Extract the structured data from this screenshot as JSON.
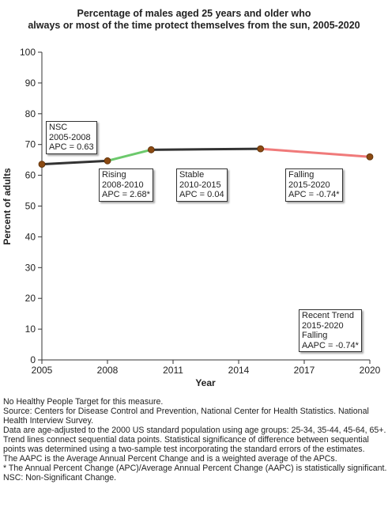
{
  "chart_data": {
    "type": "line",
    "title_lines": [
      "Percentage of males aged 25 years and older who",
      "always or most of the time protect themselves from the sun, 2005-2020"
    ],
    "xlabel": "Year",
    "ylabel": "Percent of adults",
    "xlim": [
      2005,
      2020
    ],
    "ylim": [
      0,
      100
    ],
    "x_ticks": [
      "2005",
      "2008",
      "2011",
      "2014",
      "2017",
      "2020"
    ],
    "y_ticks": [
      "0",
      "10",
      "20",
      "30",
      "40",
      "50",
      "60",
      "70",
      "80",
      "90",
      "100"
    ],
    "grid": false,
    "points": [
      {
        "x": 2005,
        "y": 63.6
      },
      {
        "x": 2008,
        "y": 64.7
      },
      {
        "x": 2010,
        "y": 68.3
      },
      {
        "x": 2015,
        "y": 68.6
      },
      {
        "x": 2020,
        "y": 66.0
      }
    ],
    "segments": [
      {
        "from": 2005,
        "to": 2008,
        "color": "#333333"
      },
      {
        "from": 2008,
        "to": 2010,
        "color": "#6cc96c"
      },
      {
        "from": 2010,
        "to": 2015,
        "color": "#333333"
      },
      {
        "from": 2015,
        "to": 2020,
        "color": "#f07a7a"
      }
    ],
    "marker_color": "#8b4a12",
    "annotations": [
      {
        "lines": [
          "NSC",
          "2005-2008",
          "APC =  0.63"
        ]
      },
      {
        "lines": [
          "Rising",
          "2008-2010",
          "APC =  2.68*"
        ]
      },
      {
        "lines": [
          "Stable",
          "2010-2015",
          "APC =  0.04"
        ]
      },
      {
        "lines": [
          "Falling",
          "2015-2020",
          "APC = -0.74*"
        ]
      },
      {
        "lines": [
          "Recent Trend",
          "2015-2020",
          "Falling",
          "AAPC = -0.74*"
        ]
      }
    ]
  },
  "notes": [
    "No Healthy People Target for this measure.",
    "Source: Centers for Disease Control and Prevention, National Center for Health Statistics. National Health Interview Survey.",
    "Data are age-adjusted to the 2000 US standard population using age groups: 25-34, 35-44, 45-64, 65+.",
    "Trend lines connect sequential data points. Statistical significance of difference between sequential points was determined using a two-sample test incorporating the standard errors of the estimates.",
    "The AAPC is the Average Annual Percent Change and is a weighted average of the APCs.",
    "* The Annual Percent Change (APC)/Average Annual Percent Change (AAPC) is statistically significant.",
    "NSC: Non-Significant Change."
  ]
}
